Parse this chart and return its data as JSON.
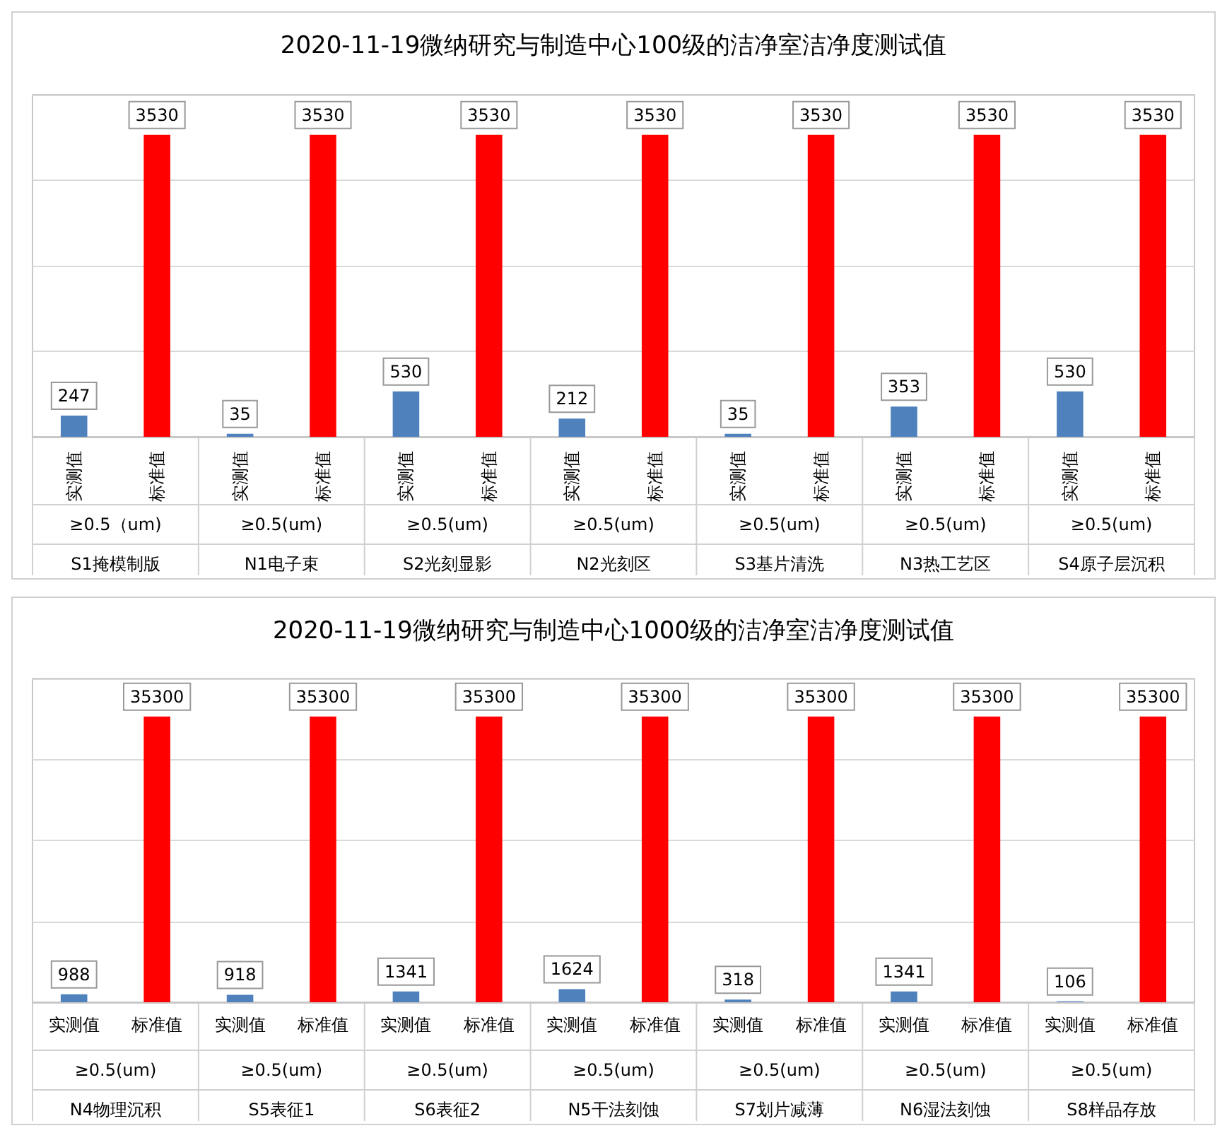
{
  "chart_data": [
    {
      "type": "bar",
      "title": "2020-11-19微纳研究与制造中心100级的洁净室洁净度测试值",
      "categories": [
        "实测值",
        "标准值",
        "实测值",
        "标准值",
        "实测值",
        "标准值",
        "实测值",
        "标准值",
        "实测值",
        "标准值",
        "实测值",
        "标准值",
        "实测值",
        "标准值"
      ],
      "values": [
        247,
        3530,
        35,
        3530,
        530,
        3530,
        212,
        3530,
        35,
        3530,
        353,
        3530,
        530,
        3530
      ],
      "colors": [
        "#4f81bd",
        "#ff0000",
        "#4f81bd",
        "#ff0000",
        "#4f81bd",
        "#ff0000",
        "#4f81bd",
        "#ff0000",
        "#4f81bd",
        "#ff0000",
        "#4f81bd",
        "#ff0000",
        "#4f81bd",
        "#ff0000"
      ],
      "data_labels": true,
      "grid": "y",
      "annotations": [
        "≥0.5（um)",
        "≥0.5(um)",
        "≥0.5(um)",
        "≥0.5(um)",
        "≥0.5(um)",
        "≥0.5(um)",
        "≥0.5(um)",
        "S1掩模制版",
        "N1电子束",
        "S2光刻显影",
        "N2光刻区",
        "S3基片清洗",
        "N3热工艺区",
        "S4原子层沉积"
      ]
    },
    {
      "type": "bar",
      "title": "2020-11-19微纳研究与制造中心1000级的洁净室洁净度测试值",
      "categories": [
        "实测值",
        "标准值",
        "实测值",
        "标准值",
        "实测值",
        "标准值",
        "实测值",
        "标准值",
        "实测值",
        "标准值",
        "实测值",
        "标准值",
        "实测值",
        "标准值"
      ],
      "values": [
        988,
        35300,
        918,
        35300,
        1341,
        35300,
        1624,
        35300,
        318,
        35300,
        1341,
        35300,
        106,
        35300
      ],
      "colors": [
        "#4f81bd",
        "#ff0000",
        "#4f81bd",
        "#ff0000",
        "#4f81bd",
        "#ff0000",
        "#4f81bd",
        "#ff0000",
        "#4f81bd",
        "#ff0000",
        "#4f81bd",
        "#ff0000",
        "#4f81bd",
        "#ff0000"
      ],
      "data_labels": true,
      "grid": "y",
      "annotations": [
        "≥0.5(um)",
        "≥0.5(um)",
        "≥0.5(um)",
        "≥0.5(um)",
        "≥0.5(um)",
        "≥0.5(um)",
        "≥0.5(um)",
        "N4物理沉积",
        "S5表征1",
        "S6表征2",
        "N5干法刻蚀",
        "S7划片减薄",
        "N6湿法刻蚀",
        "S8样品存放"
      ]
    }
  ]
}
